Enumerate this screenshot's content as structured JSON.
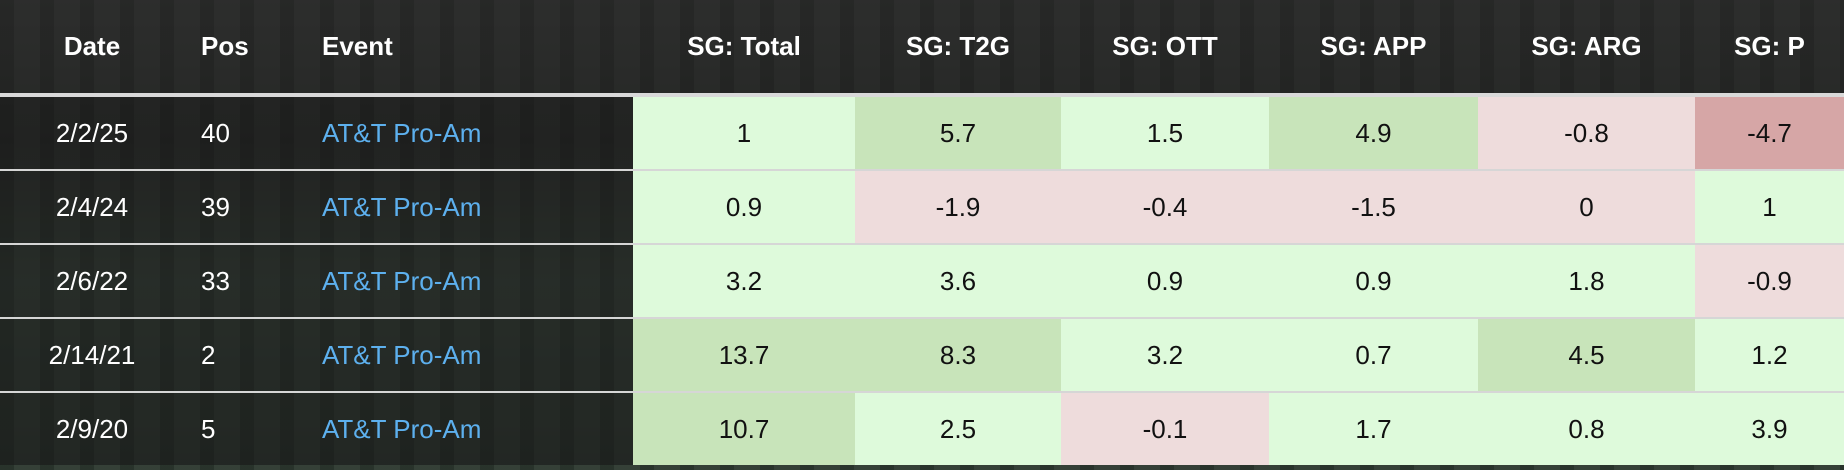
{
  "table": {
    "header": [
      "Date",
      "Pos",
      "Event",
      "SG: Total",
      "SG: T2G",
      "SG: OTT",
      "SG: APP",
      "SG: ARG",
      "SG: P"
    ],
    "rows": [
      [
        "2/2/25",
        40,
        "AT&T Pro-Am",
        1,
        5.7,
        1.5,
        4.9,
        -0.8,
        -4.7
      ],
      [
        "2/4/24",
        39,
        "AT&T Pro-Am",
        0.9,
        -1.9,
        -0.4,
        -1.5,
        0,
        1
      ],
      [
        "2/6/22",
        33,
        "AT&T Pro-Am",
        3.2,
        3.6,
        0.9,
        0.9,
        1.8,
        -0.9
      ],
      [
        "2/14/21",
        2,
        "AT&T Pro-Am",
        13.7,
        8.3,
        3.2,
        0.7,
        4.5,
        1.2
      ],
      [
        "2/9/20",
        5,
        "AT&T Pro-Am",
        10.7,
        2.5,
        -0.1,
        1.7,
        0.8,
        3.9
      ]
    ]
  }
}
